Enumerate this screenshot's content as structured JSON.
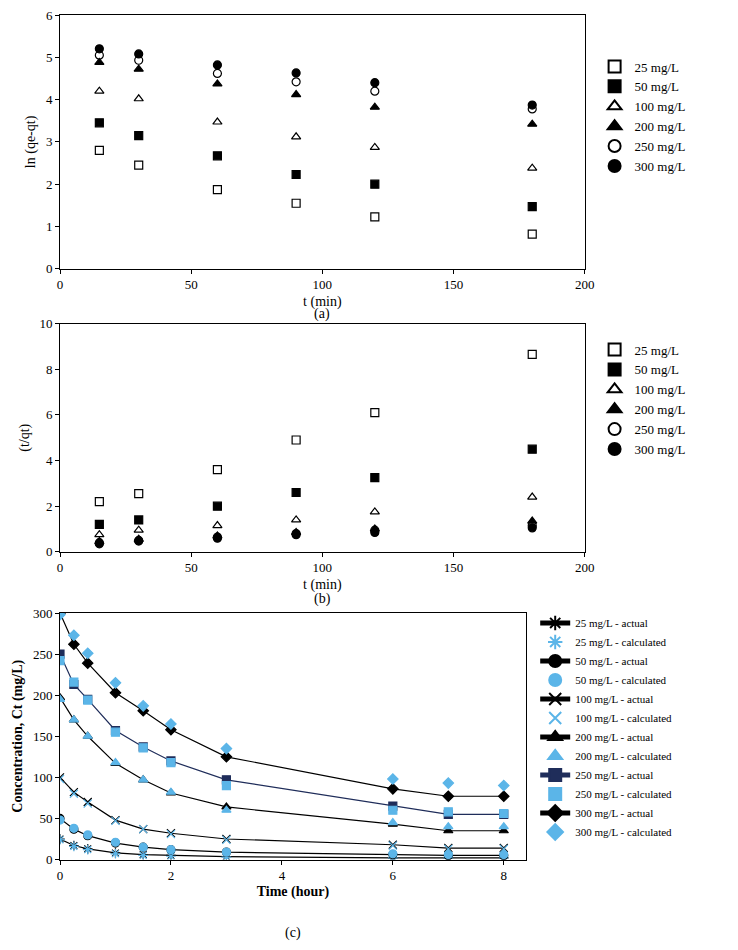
{
  "chart_data": [
    {
      "type": "scatter",
      "title": "(a)",
      "x_label": "t (min)",
      "y_label": "ln (qe-qt)",
      "x": [
        15,
        30,
        60,
        90,
        120,
        180
      ],
      "xlim": [
        0,
        200
      ],
      "xticks": [
        0,
        50,
        100,
        150,
        200
      ],
      "ylim": [
        0,
        6
      ],
      "yticks": [
        0,
        1,
        2,
        3,
        4,
        5,
        6
      ],
      "grid": false,
      "legend": "right",
      "series": [
        {
          "name": "25 mg/L",
          "color": "#000000",
          "marker": "square-open",
          "values": [
            2.8,
            2.45,
            1.87,
            1.55,
            1.23,
            0.82
          ]
        },
        {
          "name": "50 mg/L",
          "color": "#000000",
          "marker": "square",
          "values": [
            3.45,
            3.15,
            2.67,
            2.23,
            2.0,
            1.47
          ]
        },
        {
          "name": "100 mg/L",
          "color": "#000000",
          "marker": "triangle-up-open",
          "values": [
            4.2,
            4.02,
            3.47,
            3.12,
            2.87,
            2.38
          ]
        },
        {
          "name": "200 mg/L",
          "color": "#000000",
          "marker": "triangle-up",
          "values": [
            4.88,
            4.72,
            4.37,
            4.12,
            3.82,
            3.42
          ]
        },
        {
          "name": "250 mg/L",
          "color": "#000000",
          "marker": "circle-open",
          "values": [
            5.05,
            4.93,
            4.62,
            4.42,
            4.2,
            3.78
          ]
        },
        {
          "name": "300 mg/L",
          "color": "#000000",
          "marker": "circle",
          "values": [
            5.2,
            5.08,
            4.82,
            4.63,
            4.4,
            3.87
          ]
        }
      ]
    },
    {
      "type": "scatter",
      "title": "(b)",
      "x_label": "t (min)",
      "y_label": "(t/qt)",
      "x": [
        15,
        30,
        60,
        90,
        120,
        180
      ],
      "xlim": [
        0,
        200
      ],
      "xticks": [
        0,
        50,
        100,
        150,
        200
      ],
      "ylim": [
        0,
        10
      ],
      "yticks": [
        0,
        2,
        4,
        6,
        8,
        10
      ],
      "grid": false,
      "legend": "right",
      "series": [
        {
          "name": "25 mg/L",
          "color": "#000000",
          "marker": "square-open",
          "values": [
            2.2,
            2.55,
            3.6,
            4.9,
            6.1,
            8.65
          ]
        },
        {
          "name": "50 mg/L",
          "color": "#000000",
          "marker": "square",
          "values": [
            1.2,
            1.4,
            2.0,
            2.6,
            3.25,
            4.5
          ]
        },
        {
          "name": "100 mg/L",
          "color": "#000000",
          "marker": "triangle-up-open",
          "values": [
            0.75,
            0.95,
            1.15,
            1.4,
            1.75,
            2.4
          ]
        },
        {
          "name": "200 mg/L",
          "color": "#000000",
          "marker": "triangle-up",
          "values": [
            0.45,
            0.55,
            0.7,
            0.85,
            1.0,
            1.35
          ]
        },
        {
          "name": "250 mg/L",
          "color": "#000000",
          "marker": "circle-open",
          "values": [
            0.4,
            0.5,
            0.65,
            0.8,
            0.95,
            1.15
          ]
        },
        {
          "name": "300 mg/L",
          "color": "#000000",
          "marker": "circle",
          "values": [
            0.35,
            0.47,
            0.6,
            0.75,
            0.85,
            1.05
          ]
        }
      ]
    },
    {
      "type": "scatter",
      "title": "(c)",
      "x_label": "Time (hour)",
      "y_label": "Concentration, Ct (mg/L)",
      "x": [
        0,
        0.25,
        0.5,
        1,
        1.5,
        2,
        3,
        6,
        7,
        8
      ],
      "xlim": [
        0,
        8.4
      ],
      "xticks": [
        0,
        2,
        4,
        6,
        8
      ],
      "ylim": [
        0,
        300
      ],
      "yticks": [
        0,
        50,
        100,
        150,
        200,
        250,
        300
      ],
      "grid": false,
      "legend": "right",
      "series": [
        {
          "name": "25 mg/L - actual",
          "type": "line",
          "line_style": "solid",
          "color": "#000000",
          "marker": "asterisk-open",
          "values": [
            25,
            17,
            13,
            8,
            6,
            5,
            3.5,
            2,
            2,
            2
          ]
        },
        {
          "name": "25 mg/L - calculated",
          "type": "scatter",
          "color": "#5bb5e8",
          "marker": "asterisk-open",
          "values": [
            24,
            16,
            12,
            7,
            5,
            4,
            3,
            2,
            2,
            2
          ]
        },
        {
          "name": "50 mg/L - actual",
          "type": "line",
          "line_style": "solid",
          "color": "#000000",
          "marker": "circle",
          "values": [
            50,
            37,
            29,
            20,
            15,
            12,
            9,
            6,
            5,
            5
          ]
        },
        {
          "name": "50 mg/L - calculated",
          "type": "scatter",
          "color": "#5bb5e8",
          "marker": "circle",
          "values": [
            48,
            38,
            30,
            21,
            15,
            12,
            9,
            7,
            6,
            6
          ]
        },
        {
          "name": "100 mg/L - actual",
          "type": "line",
          "line_style": "solid",
          "color": "#000000",
          "marker": "x-thin-open",
          "values": [
            100,
            82,
            70,
            48,
            37,
            32,
            25,
            18,
            14,
            14
          ]
        },
        {
          "name": "100 mg/L - calculated",
          "type": "scatter",
          "color": "#5bb5e8",
          "marker": "x-thin-open",
          "values": [
            98,
            80,
            68,
            47,
            37,
            31,
            24,
            17,
            13,
            13
          ]
        },
        {
          "name": "200 mg/L - actual",
          "type": "line",
          "line_style": "solid",
          "color": "#000000",
          "marker": "triangle-up",
          "values": [
            197,
            170,
            150,
            117,
            97,
            81,
            64,
            43,
            35,
            35
          ]
        },
        {
          "name": "200 mg/L - calculated",
          "type": "scatter",
          "color": "#5bb5e8",
          "marker": "triangle-up",
          "values": [
            195,
            170,
            150,
            118,
            97,
            82,
            60,
            45,
            40,
            40
          ]
        },
        {
          "name": "250 mg/L - actual",
          "type": "line",
          "line_style": "solid",
          "color": "#1f2d5a",
          "marker": "square",
          "values": [
            250,
            213,
            195,
            157,
            137,
            120,
            97,
            65,
            55,
            55
          ]
        },
        {
          "name": "250 mg/L - calculated",
          "type": "scatter",
          "color": "#5bb5e8",
          "marker": "square",
          "values": [
            242,
            216,
            194,
            155,
            136,
            118,
            90,
            60,
            58,
            56
          ]
        },
        {
          "name": "300 mg/L - actual",
          "type": "line",
          "line_style": "solid",
          "color": "#000000",
          "marker": "diamond",
          "values": [
            300,
            262,
            239,
            203,
            181,
            158,
            125,
            86,
            77,
            77
          ]
        },
        {
          "name": "300 mg/L - calculated",
          "type": "scatter",
          "color": "#5bb5e8",
          "marker": "diamond",
          "values": [
            298,
            273,
            251,
            215,
            187,
            165,
            135,
            98,
            93,
            90
          ]
        }
      ]
    }
  ]
}
